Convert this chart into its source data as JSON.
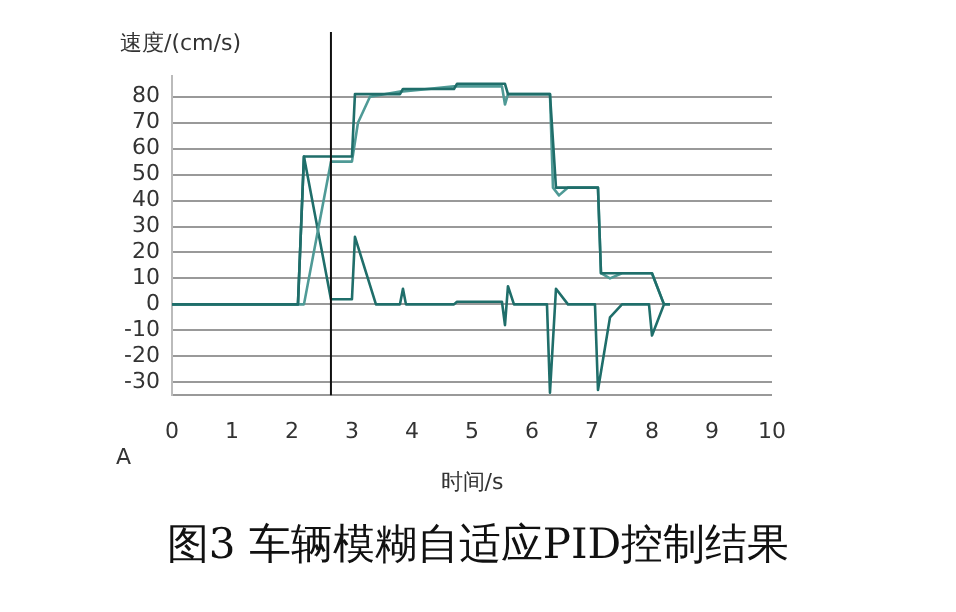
{
  "chart_data": {
    "type": "line",
    "xlabel": "时间/s",
    "ylabel": "速度/(cm/s)",
    "annotations": [
      "A",
      "图3 车辆模糊自适应PID控制结果"
    ],
    "xlim": [
      0,
      10
    ],
    "xticks": [
      0,
      1,
      2,
      3,
      4,
      5,
      6,
      7,
      8,
      9,
      10
    ],
    "ylim": [
      -35,
      88
    ],
    "yticks": [
      {
        "value": -35,
        "label": null
      },
      -30,
      -20,
      -10,
      0,
      10,
      20,
      30,
      40,
      50,
      60,
      70,
      80
    ],
    "grid": "y",
    "legend": false,
    "marker": "none",
    "line_style": "solid",
    "ref_lines": [
      {
        "axis": "x",
        "value": 2.65,
        "color": "#111111"
      }
    ],
    "series": [
      {
        "color": "#1f6e6a",
        "x": [
          0,
          2.1,
          2.2,
          3.0,
          3.05,
          3.8,
          3.85,
          4.7,
          4.75,
          5.55,
          5.6,
          6.3,
          6.4,
          7.1,
          7.15,
          8.0,
          8.2
        ],
        "values": [
          0,
          0,
          57,
          57,
          81,
          81,
          83,
          83,
          85,
          85,
          81,
          81,
          45,
          45,
          12,
          12,
          0
        ]
      },
      {
        "color": "#4f9a96",
        "x": [
          0,
          2.2,
          2.65,
          3.0,
          3.1,
          3.3,
          3.8,
          3.85,
          4.7,
          4.75,
          5.5,
          5.55,
          5.6,
          6.3,
          6.35,
          6.45,
          6.6,
          7.1,
          7.15,
          7.3,
          7.5,
          8.0,
          8.2
        ],
        "values": [
          0,
          0,
          55,
          55,
          70,
          80,
          82,
          82,
          84,
          84,
          84,
          77,
          81,
          81,
          45,
          42,
          45,
          45,
          12,
          10,
          12,
          12,
          0
        ]
      },
      {
        "color": "#1f6e6a",
        "x": [
          0,
          2.1,
          2.2,
          2.65,
          3.0,
          3.05,
          3.4,
          3.8,
          3.85,
          3.9,
          4.7,
          4.75,
          5.5,
          5.55,
          5.6,
          5.7,
          6.25,
          6.3,
          6.4,
          6.6,
          7.05,
          7.1,
          7.3,
          7.5,
          7.95,
          8.0,
          8.2,
          8.3
        ],
        "values": [
          0,
          0,
          57,
          2,
          2,
          26,
          0,
          0,
          6,
          0,
          0,
          1,
          1,
          -8,
          7,
          0,
          0,
          -34,
          6,
          0,
          0,
          -33,
          -5,
          0,
          0,
          -12,
          0,
          0
        ]
      }
    ]
  }
}
